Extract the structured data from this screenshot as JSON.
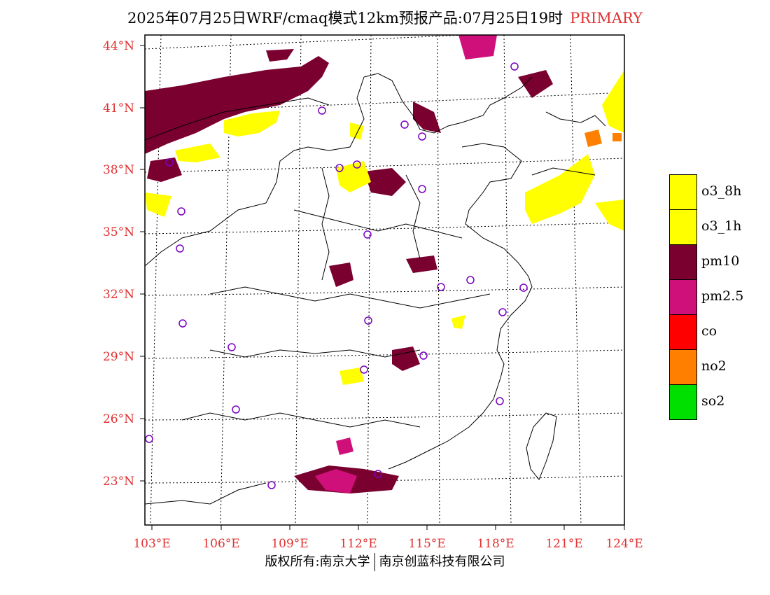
{
  "title": {
    "main": "2025年07月25日WRF/cmaq模式12km预报产品:07月25日19时",
    "tag": "PRIMARY"
  },
  "axes": {
    "lat_labels": [
      "44°N",
      "41°N",
      "38°N",
      "35°N",
      "32°N",
      "29°N",
      "26°N",
      "23°N"
    ],
    "lon_labels": [
      "103°E",
      "106°E",
      "109°E",
      "112°E",
      "115°E",
      "118°E",
      "121°E",
      "124°E"
    ],
    "label_color": "#e03030"
  },
  "legend": [
    {
      "label": "o3_8h",
      "color": "#ffff00"
    },
    {
      "label": "o3_1h",
      "color": "#ffff00"
    },
    {
      "label": "pm10",
      "color": "#7a0030"
    },
    {
      "label": "pm2.5",
      "color": "#d0107a"
    },
    {
      "label": "co",
      "color": "#ff0000"
    },
    {
      "label": "no2",
      "color": "#ff8000"
    },
    {
      "label": "so2",
      "color": "#00e000"
    }
  ],
  "footer": {
    "left": "版权所有:南京大学",
    "right": "南京创蓝科技有限公司"
  }
}
